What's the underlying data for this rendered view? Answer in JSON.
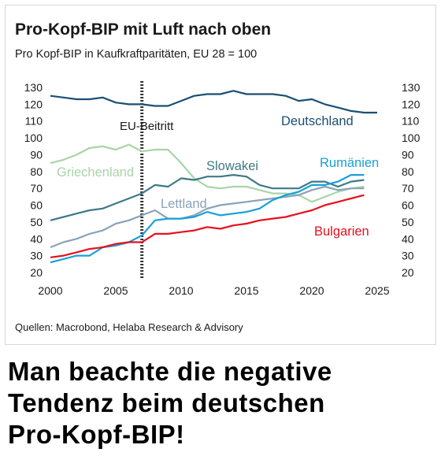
{
  "chart_data": {
    "type": "line",
    "title": "Pro-Kopf-BIP mit Luft nach oben",
    "subtitle": "Pro Kopf-BIP in Kaufkraftparitäten, EU 28 = 100",
    "source": "Quellen: Macrobond, Helaba Research & Advisory",
    "xlim": [
      2000,
      2025
    ],
    "ylim": [
      20,
      130
    ],
    "x_ticks": [
      "2000",
      "2005",
      "2010",
      "2015",
      "2020",
      "2025"
    ],
    "y_ticks": [
      "20",
      "30",
      "40",
      "50",
      "60",
      "70",
      "80",
      "90",
      "100",
      "110",
      "120",
      "130"
    ],
    "grid": false,
    "annotation": {
      "label": "EU-Beitritt",
      "x": 2007
    },
    "series": [
      {
        "name": "Deutschland",
        "color": "#1b4f72",
        "x": [
          2000,
          2001,
          2002,
          2003,
          2004,
          2005,
          2006,
          2007,
          2008,
          2009,
          2010,
          2011,
          2012,
          2013,
          2014,
          2015,
          2016,
          2017,
          2018,
          2019,
          2020,
          2021,
          2022,
          2023,
          2024,
          2025
        ],
        "values": [
          125,
          124,
          123,
          123,
          124,
          121,
          120,
          120,
          119,
          119,
          122,
          125,
          126,
          126,
          128,
          126,
          126,
          126,
          125,
          122,
          123,
          120,
          118,
          116,
          115,
          115
        ]
      },
      {
        "name": "Griechenland",
        "color": "#a8d5a8",
        "x": [
          2000,
          2001,
          2002,
          2003,
          2004,
          2005,
          2006,
          2007,
          2008,
          2009,
          2010,
          2011,
          2012,
          2013,
          2014,
          2015,
          2016,
          2017,
          2018,
          2019,
          2020,
          2021,
          2022,
          2023,
          2024
        ],
        "values": [
          85,
          87,
          90,
          94,
          95,
          93,
          96,
          92,
          93,
          93,
          85,
          76,
          71,
          70,
          71,
          71,
          69,
          67,
          67,
          66,
          62,
          65,
          68,
          70,
          71
        ]
      },
      {
        "name": "Slowakei",
        "color": "#3d7a87",
        "x": [
          2000,
          2001,
          2002,
          2003,
          2004,
          2005,
          2006,
          2007,
          2008,
          2009,
          2010,
          2011,
          2012,
          2013,
          2014,
          2015,
          2016,
          2017,
          2018,
          2019,
          2020,
          2021,
          2022,
          2023,
          2024
        ],
        "values": [
          51,
          53,
          55,
          57,
          58,
          61,
          64,
          67,
          72,
          71,
          76,
          75,
          77,
          77,
          78,
          77,
          72,
          70,
          70,
          70,
          74,
          74,
          71,
          74,
          75
        ]
      },
      {
        "name": "Lettland",
        "color": "#8aa3b8",
        "x": [
          2000,
          2001,
          2002,
          2003,
          2004,
          2005,
          2006,
          2007,
          2008,
          2009,
          2010,
          2011,
          2012,
          2013,
          2014,
          2015,
          2016,
          2017,
          2018,
          2019,
          2020,
          2021,
          2022,
          2023,
          2024
        ],
        "values": [
          35,
          38,
          40,
          43,
          45,
          49,
          51,
          54,
          57,
          52,
          52,
          54,
          58,
          60,
          61,
          62,
          63,
          64,
          65,
          66,
          69,
          71,
          69,
          70,
          70
        ]
      },
      {
        "name": "Rumänien",
        "color": "#1aa0d8",
        "x": [
          2000,
          2001,
          2002,
          2003,
          2004,
          2005,
          2006,
          2007,
          2008,
          2009,
          2010,
          2011,
          2012,
          2013,
          2014,
          2015,
          2016,
          2017,
          2018,
          2019,
          2020,
          2021,
          2022,
          2023,
          2024
        ],
        "values": [
          26,
          28,
          30,
          30,
          35,
          36,
          38,
          42,
          51,
          52,
          52,
          53,
          56,
          54,
          55,
          56,
          58,
          63,
          66,
          68,
          72,
          72,
          74,
          78,
          78
        ]
      },
      {
        "name": "Bulgarien",
        "color": "#e8101e",
        "x": [
          2000,
          2001,
          2002,
          2003,
          2004,
          2005,
          2006,
          2007,
          2008,
          2009,
          2010,
          2011,
          2012,
          2013,
          2014,
          2015,
          2016,
          2017,
          2018,
          2019,
          2020,
          2021,
          2022,
          2023,
          2024
        ],
        "values": [
          29,
          30,
          32,
          34,
          35,
          37,
          38,
          38,
          43,
          43,
          44,
          45,
          47,
          46,
          48,
          49,
          51,
          52,
          53,
          55,
          57,
          60,
          62,
          64,
          66
        ]
      }
    ]
  },
  "caption_lines": [
    "Man beachte die negative",
    "Tendenz beim deutschen",
    "Pro-Kopf-BIP!"
  ]
}
